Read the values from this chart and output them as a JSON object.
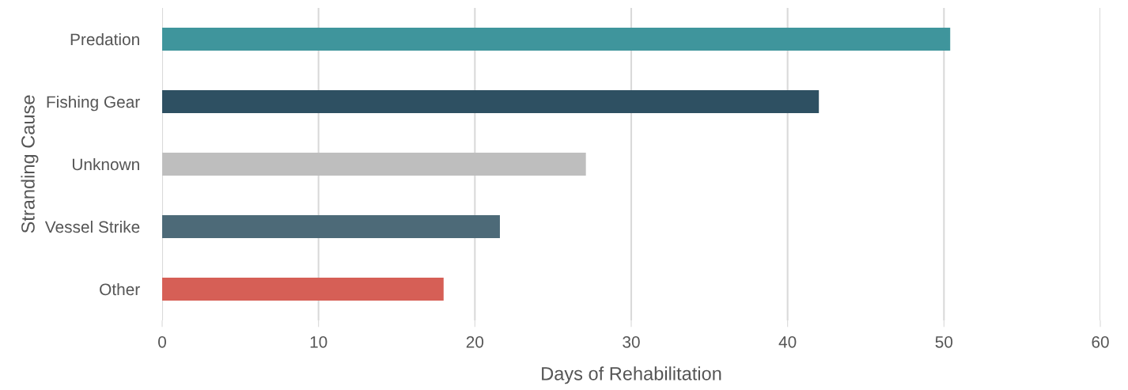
{
  "chart_data": {
    "type": "bar",
    "orientation": "horizontal",
    "xlabel": "Days of Rehabilitation",
    "ylabel": "Stranding Cause",
    "categories": [
      "Predation",
      "Fishing Gear",
      "Unknown",
      "Vessel Strike",
      "Other"
    ],
    "values": [
      50.4,
      42.0,
      27.1,
      21.6,
      18.0
    ],
    "colors": [
      "#3f959c",
      "#2e5062",
      "#bebebe",
      "#4d6a78",
      "#d65f56"
    ],
    "xlim": [
      0,
      60
    ],
    "xticks": [
      0,
      10,
      20,
      30,
      40,
      50,
      60
    ],
    "grid": "x",
    "legend": false
  }
}
